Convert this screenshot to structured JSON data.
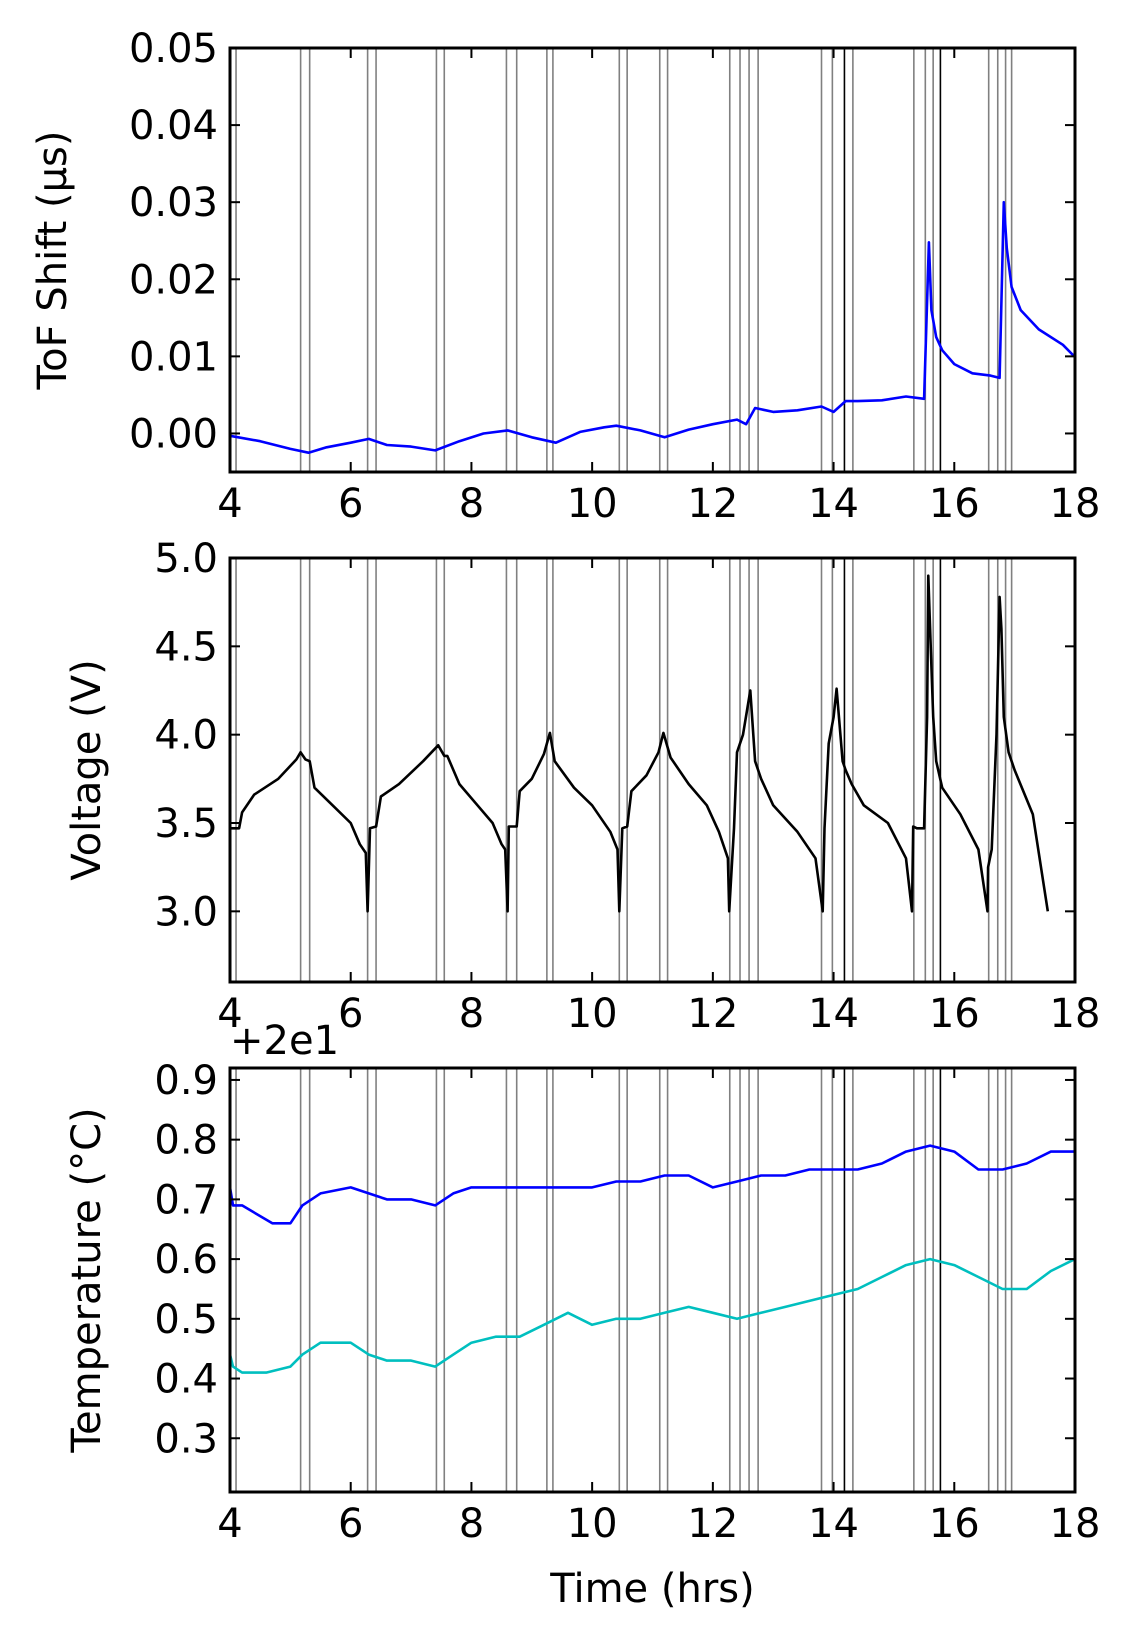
{
  "colors": {
    "tof": "#0000ff",
    "voltage": "#000000",
    "temp_upper": "#0000ff",
    "temp_lower": "#00bfbf",
    "event_line": "#808080",
    "event_line_dark": "#000000"
  },
  "chart_data": [
    {
      "type": "line",
      "id": "tof",
      "ylabel": "ToF Shift (μs)",
      "xlim": [
        4,
        18
      ],
      "ylim": [
        -0.005,
        0.05
      ],
      "xticks": [
        "4",
        "6",
        "8",
        "10",
        "12",
        "14",
        "16",
        "18"
      ],
      "yticks": [
        "0.00",
        "0.01",
        "0.02",
        "0.03",
        "0.04",
        "0.05"
      ],
      "series": [
        {
          "x": [
            4.0,
            4.5,
            5.0,
            5.3,
            5.6,
            6.0,
            6.3,
            6.6,
            7.0,
            7.4,
            7.8,
            8.2,
            8.6,
            9.0,
            9.4,
            9.8,
            10.2,
            10.4,
            10.8,
            11.2,
            11.6,
            12.0,
            12.4,
            12.55,
            12.7,
            13.0,
            13.4,
            13.8,
            14.0,
            14.2,
            14.4,
            14.8,
            15.2,
            15.5,
            15.58,
            15.62,
            15.7,
            15.8,
            16.0,
            16.3,
            16.6,
            16.75,
            16.82,
            16.87,
            16.95,
            17.1,
            17.4,
            17.8,
            18.0
          ],
          "y": [
            -0.0003,
            -0.001,
            -0.002,
            -0.0025,
            -0.0018,
            -0.0012,
            -0.0007,
            -0.0015,
            -0.0017,
            -0.0022,
            -0.001,
            0.0,
            0.0004,
            -0.0005,
            -0.0012,
            0.0002,
            0.0008,
            0.001,
            0.0004,
            -0.0005,
            0.0005,
            0.0012,
            0.0018,
            0.0012,
            0.0033,
            0.0028,
            0.003,
            0.0035,
            0.0028,
            0.0042,
            0.0042,
            0.0043,
            0.0048,
            0.0045,
            0.0248,
            0.016,
            0.0125,
            0.0108,
            0.009,
            0.0078,
            0.0075,
            0.0072,
            0.03,
            0.024,
            0.019,
            0.016,
            0.0135,
            0.0115,
            0.0099
          ]
        }
      ],
      "event_lines": [
        4.1,
        5.17,
        5.32,
        6.28,
        6.42,
        7.42,
        7.55,
        8.58,
        8.75,
        9.25,
        9.35,
        10.45,
        10.58,
        11.12,
        11.25,
        12.28,
        12.45,
        12.6,
        12.75,
        13.8,
        13.98,
        14.18,
        14.32,
        15.33,
        15.52,
        15.65,
        15.77,
        16.57,
        16.72,
        16.85,
        16.95
      ]
    },
    {
      "type": "line",
      "id": "voltage",
      "ylabel": "Voltage (V)",
      "xlim": [
        4,
        18
      ],
      "ylim": [
        2.6,
        5.0
      ],
      "xticks": [
        "4",
        "6",
        "8",
        "10",
        "12",
        "14",
        "16",
        "18"
      ],
      "yticks": [
        "3.0",
        "3.5",
        "4.0",
        "4.5",
        "5.0"
      ],
      "series": [
        {
          "x": [
            4.0,
            4.15,
            4.2,
            4.4,
            4.8,
            5.1,
            5.17,
            5.25,
            5.32,
            5.4,
            5.7,
            6.0,
            6.15,
            6.25,
            6.28,
            6.32,
            6.42,
            6.5,
            6.8,
            7.2,
            7.45,
            7.55,
            7.6,
            7.8,
            8.1,
            8.35,
            8.5,
            8.56,
            8.6,
            8.62,
            8.75,
            8.8,
            9.0,
            9.2,
            9.3,
            9.38,
            9.7,
            10.0,
            10.3,
            10.42,
            10.45,
            10.5,
            10.58,
            10.65,
            10.9,
            11.1,
            11.18,
            11.3,
            11.6,
            11.9,
            12.1,
            12.25,
            12.27,
            12.35,
            12.4,
            12.5,
            12.62,
            12.7,
            12.8,
            13.0,
            13.4,
            13.7,
            13.82,
            13.85,
            13.92,
            14.0,
            14.05,
            14.15,
            14.2,
            14.3,
            14.5,
            14.9,
            15.2,
            15.3,
            15.32,
            15.38,
            15.5,
            15.55,
            15.57,
            15.6,
            15.65,
            15.7,
            15.8,
            16.1,
            16.4,
            16.55,
            16.56,
            16.62,
            16.7,
            16.75,
            16.78,
            16.82,
            16.9,
            17.0,
            17.3,
            17.55
          ],
          "y": [
            3.47,
            3.47,
            3.56,
            3.66,
            3.75,
            3.86,
            3.9,
            3.86,
            3.85,
            3.7,
            3.6,
            3.5,
            3.38,
            3.33,
            3.0,
            3.47,
            3.48,
            3.65,
            3.72,
            3.85,
            3.94,
            3.88,
            3.88,
            3.72,
            3.6,
            3.5,
            3.38,
            3.35,
            3.0,
            3.48,
            3.48,
            3.68,
            3.75,
            3.89,
            4.01,
            3.85,
            3.7,
            3.6,
            3.45,
            3.35,
            3.0,
            3.47,
            3.48,
            3.68,
            3.77,
            3.9,
            4.01,
            3.87,
            3.72,
            3.6,
            3.45,
            3.3,
            3.0,
            3.47,
            3.9,
            4.0,
            4.25,
            3.85,
            3.75,
            3.6,
            3.45,
            3.3,
            3.0,
            3.47,
            3.95,
            4.1,
            4.26,
            3.85,
            3.8,
            3.72,
            3.6,
            3.5,
            3.3,
            3.0,
            3.48,
            3.47,
            3.47,
            4.1,
            4.9,
            4.6,
            4.1,
            3.85,
            3.7,
            3.55,
            3.35,
            3.0,
            3.25,
            3.35,
            4.0,
            4.78,
            4.6,
            4.1,
            3.9,
            3.8,
            3.55,
            3.0
          ]
        }
      ],
      "event_lines": [
        4.1,
        5.17,
        5.32,
        6.28,
        6.42,
        7.42,
        7.55,
        8.58,
        8.75,
        9.25,
        9.35,
        10.45,
        10.58,
        11.12,
        11.25,
        12.28,
        12.45,
        12.6,
        12.75,
        13.8,
        13.98,
        14.18,
        14.32,
        15.33,
        15.52,
        15.65,
        15.77,
        16.57,
        16.72,
        16.85,
        16.95
      ]
    },
    {
      "type": "line",
      "id": "temperature",
      "ylabel": "Temperature (°C)",
      "offset_label": "+2e1",
      "xlim": [
        4,
        18
      ],
      "ylim": [
        0.21,
        0.92
      ],
      "xticks": [
        "4",
        "6",
        "8",
        "10",
        "12",
        "14",
        "16",
        "18"
      ],
      "xlabel": "Time (hrs)",
      "yticks": [
        "0.3",
        "0.4",
        "0.5",
        "0.6",
        "0.7",
        "0.8",
        "0.9"
      ],
      "series": [
        {
          "x": [
            4.0,
            4.05,
            4.2,
            4.7,
            5.0,
            5.2,
            5.5,
            6.0,
            6.3,
            6.6,
            7.0,
            7.4,
            7.7,
            8.0,
            8.4,
            8.8,
            9.2,
            9.6,
            10.0,
            10.4,
            10.8,
            11.2,
            11.6,
            12.0,
            12.4,
            12.8,
            13.2,
            13.6,
            14.0,
            14.4,
            14.8,
            15.2,
            15.6,
            16.0,
            16.4,
            16.8,
            17.2,
            17.6,
            18.0
          ],
          "y": [
            0.72,
            0.69,
            0.69,
            0.66,
            0.66,
            0.69,
            0.71,
            0.72,
            0.71,
            0.7,
            0.7,
            0.69,
            0.71,
            0.72,
            0.72,
            0.72,
            0.72,
            0.72,
            0.72,
            0.73,
            0.73,
            0.74,
            0.74,
            0.72,
            0.73,
            0.74,
            0.74,
            0.75,
            0.75,
            0.75,
            0.76,
            0.78,
            0.79,
            0.78,
            0.75,
            0.75,
            0.76,
            0.78,
            0.78
          ]
        },
        {
          "x": [
            4.0,
            4.05,
            4.2,
            4.6,
            5.0,
            5.2,
            5.5,
            6.0,
            6.3,
            6.6,
            7.0,
            7.4,
            7.7,
            8.0,
            8.4,
            8.8,
            9.2,
            9.6,
            10.0,
            10.4,
            10.8,
            11.2,
            11.6,
            12.0,
            12.4,
            12.8,
            13.2,
            13.6,
            14.0,
            14.4,
            14.8,
            15.2,
            15.6,
            16.0,
            16.4,
            16.8,
            17.2,
            17.6,
            18.0
          ],
          "y": [
            0.44,
            0.42,
            0.41,
            0.41,
            0.42,
            0.44,
            0.46,
            0.46,
            0.44,
            0.43,
            0.43,
            0.42,
            0.44,
            0.46,
            0.47,
            0.47,
            0.49,
            0.51,
            0.49,
            0.5,
            0.5,
            0.51,
            0.52,
            0.51,
            0.5,
            0.51,
            0.52,
            0.53,
            0.54,
            0.55,
            0.57,
            0.59,
            0.6,
            0.59,
            0.57,
            0.55,
            0.55,
            0.58,
            0.6
          ]
        }
      ],
      "event_lines": [
        4.1,
        5.17,
        5.32,
        6.28,
        6.42,
        7.42,
        7.55,
        8.58,
        8.75,
        9.25,
        9.35,
        10.45,
        10.58,
        11.12,
        11.25,
        12.28,
        12.45,
        12.6,
        12.75,
        13.8,
        13.98,
        14.18,
        14.32,
        15.33,
        15.52,
        15.65,
        15.77,
        16.57,
        16.72,
        16.85,
        16.95
      ]
    }
  ]
}
